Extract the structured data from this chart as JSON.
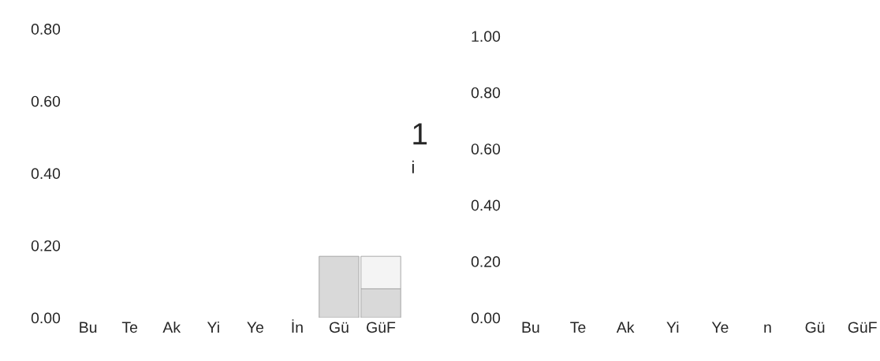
{
  "chart_data": [
    {
      "type": "bar",
      "stacked": true,
      "categories": [
        "Bu",
        "Te",
        "Ak",
        "Yi",
        "Ye",
        "İn",
        "Gü",
        "GüF"
      ],
      "series": [
        {
          "color": "#d9d9d9",
          "values": [
            null,
            null,
            null,
            null,
            null,
            null,
            0.17,
            0.08
          ]
        },
        {
          "color": "#f4f4f4",
          "values": [
            null,
            null,
            null,
            null,
            null,
            null,
            null,
            0.09
          ]
        }
      ],
      "ylim": [
        0,
        0.8
      ],
      "yticks": [
        {
          "value": 0,
          "label": "0.00"
        },
        {
          "value": 0.2,
          "label": "0.20"
        },
        {
          "value": 0.4,
          "label": "0.40"
        },
        {
          "value": 0.6,
          "label": "0.60"
        },
        {
          "value": 0.8,
          "label": "0.80"
        }
      ],
      "annotations": [
        "1",
        "i"
      ],
      "grid": false
    },
    {
      "type": "bar",
      "categories": [
        "Bu",
        "Te",
        "Ak",
        "Yi",
        "Ye",
        "n",
        "Gü",
        "GüF"
      ],
      "series": [
        {
          "color": "#d9d9d9",
          "values": [
            null,
            null,
            null,
            null,
            null,
            null,
            null,
            null
          ]
        }
      ],
      "ylim": [
        0,
        1.0
      ],
      "yticks": [
        {
          "value": 0,
          "label": "0.00"
        },
        {
          "value": 0.2,
          "label": "0.20"
        },
        {
          "value": 0.4,
          "label": "0.40"
        },
        {
          "value": 0.6,
          "label": "0.60"
        },
        {
          "value": 0.8,
          "label": "0.80"
        },
        {
          "value": 1.0,
          "label": "1.00"
        }
      ],
      "grid": false
    }
  ]
}
